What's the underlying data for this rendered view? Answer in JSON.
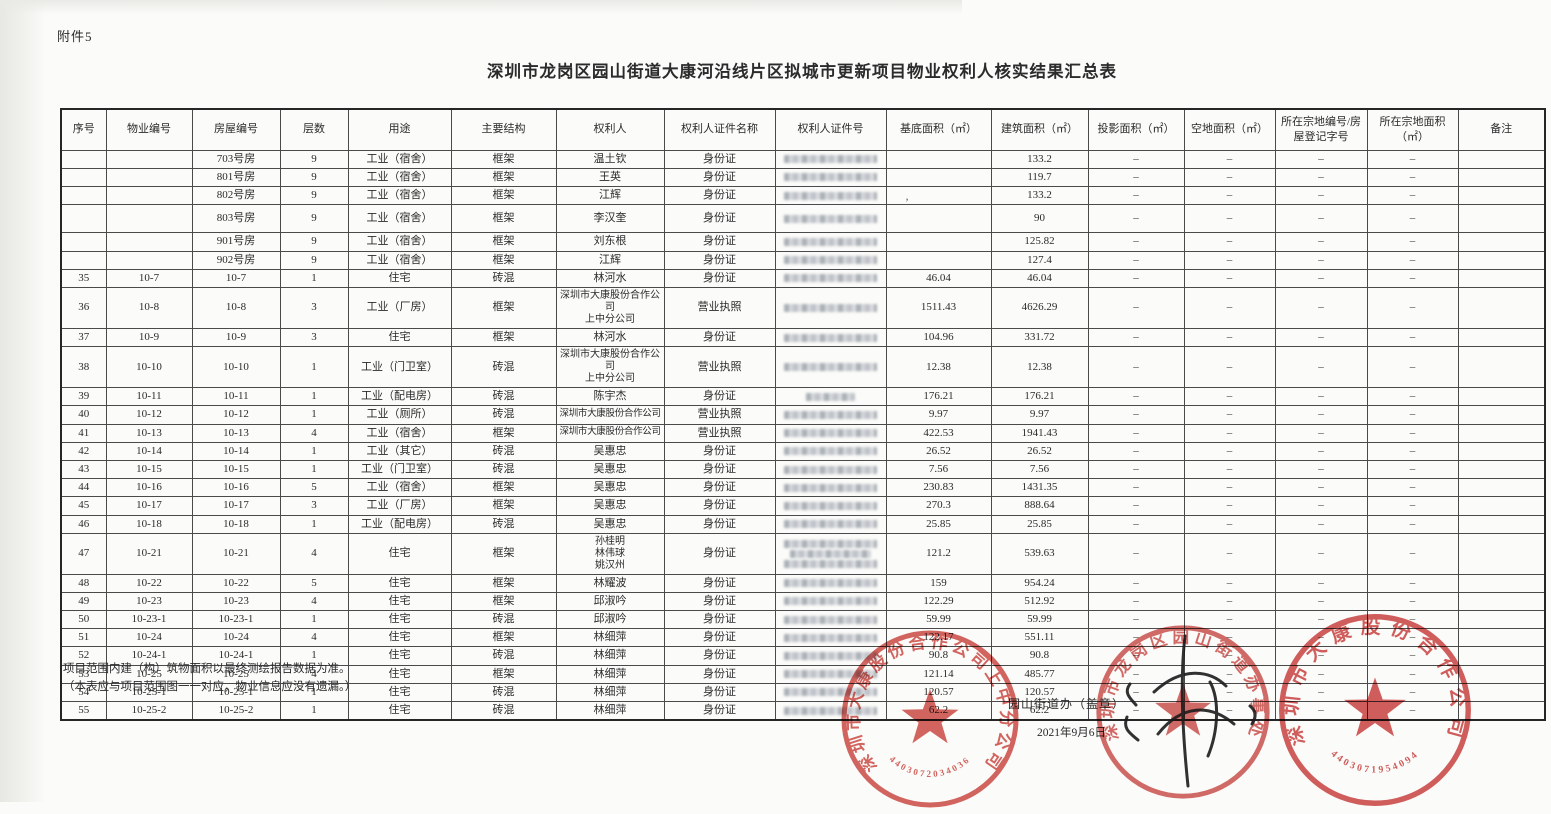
{
  "page": {
    "attachment_label": "附件5",
    "title": "深圳市龙岗区园山街道大康河沿线片区拟城市更新项目物业权利人核实结果汇总表",
    "stray_mark": "’"
  },
  "table": {
    "headers": [
      "序号",
      "物业编号",
      "房屋编号",
      "层数",
      "用途",
      "主要结构",
      "权利人",
      "权利人证件名称",
      "权利人证件号",
      "基底面积（㎡）",
      "建筑面积（㎡）",
      "投影面积（㎡）",
      "空地面积（㎡）",
      "所在宗地编号/房屋登记字号",
      "所在宗地面积（㎡）",
      "备注"
    ],
    "rows": [
      {
        "no": "",
        "property_no": "",
        "house_no": "703号房",
        "floors": "9",
        "use": "工业（宿舍）",
        "structure": "框架",
        "owner": "温土钦",
        "cert_type": "身份证",
        "cert_redacted": true,
        "base_area": "",
        "build_area": "133.2",
        "proj_area": "–",
        "open_area": "–",
        "parcel_no": "–",
        "parcel_area": "–",
        "remark": ""
      },
      {
        "no": "",
        "property_no": "",
        "house_no": "801号房",
        "floors": "9",
        "use": "工业（宿舍）",
        "structure": "框架",
        "owner": "王英",
        "cert_type": "身份证",
        "cert_redacted": true,
        "base_area": "",
        "build_area": "119.7",
        "proj_area": "–",
        "open_area": "–",
        "parcel_no": "–",
        "parcel_area": "–",
        "remark": ""
      },
      {
        "no": "",
        "property_no": "",
        "house_no": "802号房",
        "floors": "9",
        "use": "工业（宿舍）",
        "structure": "框架",
        "owner": "江辉",
        "cert_type": "身份证",
        "cert_redacted": true,
        "base_area": "",
        "build_area": "133.2",
        "proj_area": "–",
        "open_area": "–",
        "parcel_no": "–",
        "parcel_area": "–",
        "remark": ""
      },
      {
        "no": "",
        "property_no": "",
        "house_no": "803号房",
        "floors": "9",
        "use": "工业（宿舍）",
        "structure": "框架",
        "owner": "李汉奎",
        "cert_type": "身份证",
        "cert_redacted": true,
        "base_area": "",
        "build_area": "90",
        "proj_area": "–",
        "open_area": "–",
        "parcel_no": "–",
        "parcel_area": "–",
        "remark": "",
        "tall": true
      },
      {
        "no": "",
        "property_no": "",
        "house_no": "901号房",
        "floors": "9",
        "use": "工业（宿舍）",
        "structure": "框架",
        "owner": "刘东根",
        "cert_type": "身份证",
        "cert_redacted": true,
        "base_area": "",
        "build_area": "125.82",
        "proj_area": "–",
        "open_area": "–",
        "parcel_no": "–",
        "parcel_area": "–",
        "remark": ""
      },
      {
        "no": "",
        "property_no": "",
        "house_no": "902号房",
        "floors": "9",
        "use": "工业（宿舍）",
        "structure": "框架",
        "owner": "江辉",
        "cert_type": "身份证",
        "cert_redacted": true,
        "base_area": "",
        "build_area": "127.4",
        "proj_area": "–",
        "open_area": "–",
        "parcel_no": "–",
        "parcel_area": "–",
        "remark": ""
      },
      {
        "no": "35",
        "property_no": "10-7",
        "house_no": "10-7",
        "floors": "1",
        "use": "住宅",
        "structure": "砖混",
        "owner": "林河水",
        "cert_type": "身份证",
        "cert_redacted": true,
        "base_area": "46.04",
        "build_area": "46.04",
        "proj_area": "–",
        "open_area": "–",
        "parcel_no": "–",
        "parcel_area": "–",
        "remark": ""
      },
      {
        "no": "36",
        "property_no": "10-8",
        "house_no": "10-8",
        "floors": "3",
        "use": "工业（厂房）",
        "structure": "框架",
        "owner": "深圳市大康股份合作公司\n上中分公司",
        "cert_type": "营业执照",
        "cert_redacted": true,
        "base_area": "1511.43",
        "build_area": "4626.29",
        "proj_area": "–",
        "open_area": "–",
        "parcel_no": "–",
        "parcel_area": "–",
        "remark": ""
      },
      {
        "no": "37",
        "property_no": "10-9",
        "house_no": "10-9",
        "floors": "3",
        "use": "住宅",
        "structure": "框架",
        "owner": "林河水",
        "cert_type": "身份证",
        "cert_redacted": true,
        "base_area": "104.96",
        "build_area": "331.72",
        "proj_area": "–",
        "open_area": "–",
        "parcel_no": "–",
        "parcel_area": "–",
        "remark": ""
      },
      {
        "no": "38",
        "property_no": "10-10",
        "house_no": "10-10",
        "floors": "1",
        "use": "工业（门卫室）",
        "structure": "砖混",
        "owner": "深圳市大康股份合作公司\n上中分公司",
        "cert_type": "营业执照",
        "cert_redacted": true,
        "base_area": "12.38",
        "build_area": "12.38",
        "proj_area": "–",
        "open_area": "–",
        "parcel_no": "–",
        "parcel_area": "–",
        "remark": ""
      },
      {
        "no": "39",
        "property_no": "10-11",
        "house_no": "10-11",
        "floors": "1",
        "use": "工业（配电房）",
        "structure": "砖混",
        "owner": "陈宇杰",
        "cert_type": "身份证",
        "cert_redacted": true,
        "cert_blur": "short",
        "base_area": "176.21",
        "build_area": "176.21",
        "proj_area": "–",
        "open_area": "–",
        "parcel_no": "–",
        "parcel_area": "–",
        "remark": ""
      },
      {
        "no": "40",
        "property_no": "10-12",
        "house_no": "10-12",
        "floors": "1",
        "use": "工业（厕所）",
        "structure": "砖混",
        "owner": "深圳市大康股份合作公司",
        "cert_type": "营业执照",
        "cert_redacted": true,
        "base_area": "9.97",
        "build_area": "9.97",
        "proj_area": "–",
        "open_area": "–",
        "parcel_no": "–",
        "parcel_area": "–",
        "remark": ""
      },
      {
        "no": "41",
        "property_no": "10-13",
        "house_no": "10-13",
        "floors": "4",
        "use": "工业（宿舍）",
        "structure": "框架",
        "owner": "深圳市大康股份合作公司",
        "cert_type": "营业执照",
        "cert_redacted": true,
        "base_area": "422.53",
        "build_area": "1941.43",
        "proj_area": "–",
        "open_area": "–",
        "parcel_no": "–",
        "parcel_area": "–",
        "remark": ""
      },
      {
        "no": "42",
        "property_no": "10-14",
        "house_no": "10-14",
        "floors": "1",
        "use": "工业（其它）",
        "structure": "砖混",
        "owner": "吴惠忠",
        "cert_type": "身份证",
        "cert_redacted": true,
        "base_area": "26.52",
        "build_area": "26.52",
        "proj_area": "–",
        "open_area": "–",
        "parcel_no": "–",
        "parcel_area": "–",
        "remark": ""
      },
      {
        "no": "43",
        "property_no": "10-15",
        "house_no": "10-15",
        "floors": "1",
        "use": "工业（门卫室）",
        "structure": "砖混",
        "owner": "吴惠忠",
        "cert_type": "身份证",
        "cert_redacted": true,
        "base_area": "7.56",
        "build_area": "7.56",
        "proj_area": "–",
        "open_area": "–",
        "parcel_no": "–",
        "parcel_area": "–",
        "remark": ""
      },
      {
        "no": "44",
        "property_no": "10-16",
        "house_no": "10-16",
        "floors": "5",
        "use": "工业（宿舍）",
        "structure": "框架",
        "owner": "吴惠忠",
        "cert_type": "身份证",
        "cert_redacted": true,
        "base_area": "230.83",
        "build_area": "1431.35",
        "proj_area": "–",
        "open_area": "–",
        "parcel_no": "–",
        "parcel_area": "–",
        "remark": ""
      },
      {
        "no": "45",
        "property_no": "10-17",
        "house_no": "10-17",
        "floors": "3",
        "use": "工业（厂房）",
        "structure": "框架",
        "owner": "吴惠忠",
        "cert_type": "身份证",
        "cert_redacted": true,
        "base_area": "270.3",
        "build_area": "888.64",
        "proj_area": "–",
        "open_area": "–",
        "parcel_no": "–",
        "parcel_area": "–",
        "remark": ""
      },
      {
        "no": "46",
        "property_no": "10-18",
        "house_no": "10-18",
        "floors": "1",
        "use": "工业（配电房）",
        "structure": "砖混",
        "owner": "吴惠忠",
        "cert_type": "身份证",
        "cert_redacted": true,
        "base_area": "25.85",
        "build_area": "25.85",
        "proj_area": "–",
        "open_area": "–",
        "parcel_no": "–",
        "parcel_area": "–",
        "remark": ""
      },
      {
        "no": "47",
        "property_no": "10-21",
        "house_no": "10-21",
        "floors": "4",
        "use": "住宅",
        "structure": "框架",
        "owner": "孙桂明\n林伟球\n姚汉州",
        "cert_type": "身份证",
        "cert_redacted": true,
        "cert_lines": 3,
        "base_area": "121.2",
        "build_area": "539.63",
        "proj_area": "–",
        "open_area": "–",
        "parcel_no": "–",
        "parcel_area": "–",
        "remark": ""
      },
      {
        "no": "48",
        "property_no": "10-22",
        "house_no": "10-22",
        "floors": "5",
        "use": "住宅",
        "structure": "框架",
        "owner": "林耀波",
        "cert_type": "身份证",
        "cert_redacted": true,
        "base_area": "159",
        "build_area": "954.24",
        "proj_area": "–",
        "open_area": "–",
        "parcel_no": "–",
        "parcel_area": "–",
        "remark": ""
      },
      {
        "no": "49",
        "property_no": "10-23",
        "house_no": "10-23",
        "floors": "4",
        "use": "住宅",
        "structure": "框架",
        "owner": "邱淑吟",
        "cert_type": "身份证",
        "cert_redacted": true,
        "base_area": "122.29",
        "build_area": "512.92",
        "proj_area": "–",
        "open_area": "–",
        "parcel_no": "–",
        "parcel_area": "–",
        "remark": ""
      },
      {
        "no": "50",
        "property_no": "10-23-1",
        "house_no": "10-23-1",
        "floors": "1",
        "use": "住宅",
        "structure": "砖混",
        "owner": "邱淑吟",
        "cert_type": "身份证",
        "cert_redacted": true,
        "base_area": "59.99",
        "build_area": "59.99",
        "proj_area": "–",
        "open_area": "–",
        "parcel_no": "–",
        "parcel_area": "–",
        "remark": ""
      },
      {
        "no": "51",
        "property_no": "10-24",
        "house_no": "10-24",
        "floors": "4",
        "use": "住宅",
        "structure": "框架",
        "owner": "林细萍",
        "cert_type": "身份证",
        "cert_redacted": true,
        "base_area": "122.17",
        "build_area": "551.11",
        "proj_area": "–",
        "open_area": "–",
        "parcel_no": "–",
        "parcel_area": "–",
        "remark": ""
      },
      {
        "no": "52",
        "property_no": "10-24-1",
        "house_no": "10-24-1",
        "floors": "1",
        "use": "住宅",
        "structure": "砖混",
        "owner": "林细萍",
        "cert_type": "身份证",
        "cert_redacted": true,
        "base_area": "90.8",
        "build_area": "90.8",
        "proj_area": "–",
        "open_area": "–",
        "parcel_no": "–",
        "parcel_area": "–",
        "remark": ""
      },
      {
        "no": "53",
        "property_no": "10-25",
        "house_no": "10-25",
        "floors": "4",
        "use": "住宅",
        "structure": "框架",
        "owner": "林细萍",
        "cert_type": "身份证",
        "cert_redacted": true,
        "base_area": "121.14",
        "build_area": "485.77",
        "proj_area": "–",
        "open_area": "–",
        "parcel_no": "–",
        "parcel_area": "–",
        "remark": ""
      },
      {
        "no": "54",
        "property_no": "10-25-1",
        "house_no": "10-25-1",
        "floors": "1",
        "use": "住宅",
        "structure": "砖混",
        "owner": "林细萍",
        "cert_type": "身份证",
        "cert_redacted": true,
        "base_area": "120.57",
        "build_area": "120.57",
        "proj_area": "–",
        "open_area": "–",
        "parcel_no": "–",
        "parcel_area": "–",
        "remark": ""
      },
      {
        "no": "55",
        "property_no": "10-25-2",
        "house_no": "10-25-2",
        "floors": "1",
        "use": "住宅",
        "structure": "砖混",
        "owner": "林细萍",
        "cert_type": "身份证",
        "cert_redacted": true,
        "base_area": "62.2",
        "build_area": "62.2",
        "proj_area": "–",
        "open_area": "–",
        "parcel_no": "–",
        "parcel_area": "–",
        "remark": ""
      }
    ]
  },
  "footnotes": {
    "line1": "项目范围内建（构）筑物面积以最终测绘报告数据为准。",
    "line2": "（本表应与项目范围图一一对应，物业信息应没有遗漏。）"
  },
  "stamp_caption": {
    "line1": "园山街道办（盖章）",
    "line2": "2021年9月6日"
  },
  "stamps": [
    {
      "text": "深圳市大康股份合作公司上中分公司",
      "number": "4403072034036"
    },
    {
      "text": "深圳市龙岗区园山街道办事处",
      "number": ""
    },
    {
      "text": "深圳市大康股份合作公司",
      "number": "4403071954094"
    }
  ]
}
